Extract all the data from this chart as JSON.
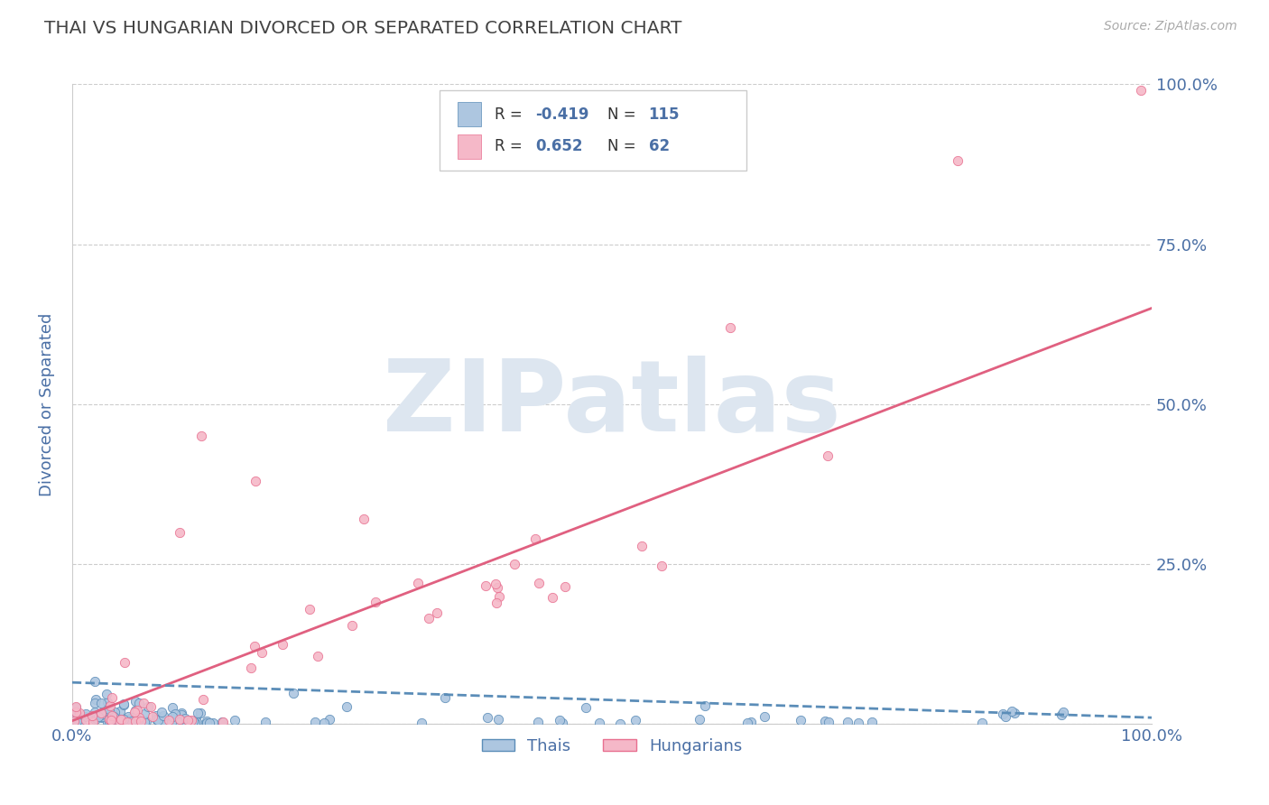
{
  "title": "THAI VS HUNGARIAN DIVORCED OR SEPARATED CORRELATION CHART",
  "source": "Source: ZipAtlas.com",
  "ylabel": "Divorced or Separated",
  "xlabel": "",
  "blue_R": -0.419,
  "blue_N": 115,
  "pink_R": 0.652,
  "pink_N": 62,
  "blue_color": "#adc6e0",
  "pink_color": "#f5b8c8",
  "blue_edge_color": "#5b8db8",
  "pink_edge_color": "#e87090",
  "blue_line_color": "#5b8db8",
  "pink_line_color": "#e06080",
  "title_color": "#444444",
  "axis_label_color": "#4a6fa5",
  "tick_color": "#4a6fa5",
  "legend_R_color": "#4a6fa5",
  "watermark": "ZIPatlas",
  "watermark_color": "#dde6f0",
  "grid_color": "#cccccc",
  "background_color": "#ffffff",
  "xlim": [
    0.0,
    1.0
  ],
  "ylim": [
    0.0,
    1.0
  ],
  "yticks": [
    0.0,
    0.25,
    0.5,
    0.75,
    1.0
  ],
  "ytick_labels": [
    "",
    "25.0%",
    "50.0%",
    "75.0%",
    "100.0%"
  ],
  "xtick_labels": [
    "0.0%",
    "100.0%"
  ],
  "xticks": [
    0.0,
    1.0
  ],
  "pink_trend_start": 0.005,
  "pink_trend_end": 0.65,
  "blue_trend_start": 0.065,
  "blue_trend_end": 0.01,
  "figsize": [
    14.06,
    8.92
  ],
  "dpi": 100
}
